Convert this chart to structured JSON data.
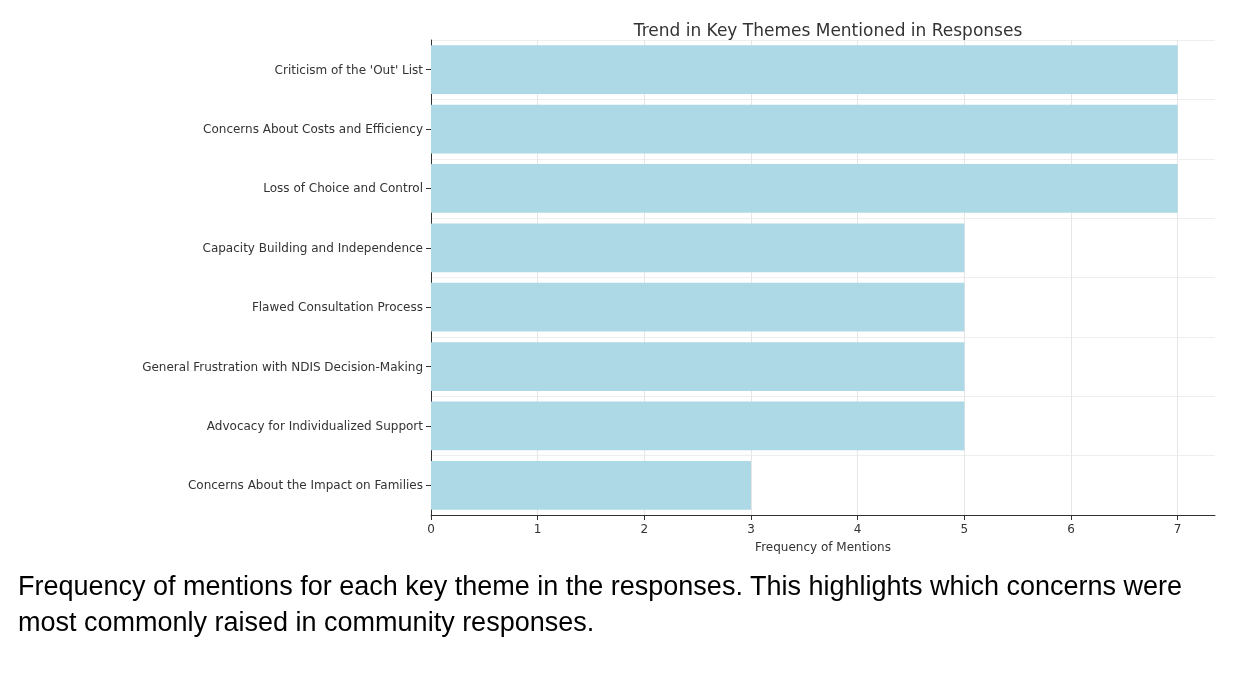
{
  "chart_data": {
    "type": "bar",
    "orientation": "horizontal",
    "title": "Trend in Key Themes Mentioned in Responses",
    "xlabel": "Frequency of Mentions",
    "categories": [
      "Criticism of the 'Out' List",
      "Concerns About Costs and Efficiency",
      "Loss of Choice and Control",
      "Capacity Building and Independence",
      "Flawed Consultation Process",
      "General Frustration with NDIS Decision-Making",
      "Advocacy for Individualized Support",
      "Concerns About the Impact on Families"
    ],
    "values": [
      7,
      7,
      7,
      5,
      5,
      5,
      5,
      3
    ],
    "color": "#add8e6",
    "xlim": [
      0,
      7.35
    ],
    "xticks": [
      0,
      1,
      2,
      3,
      4,
      5,
      6,
      7
    ],
    "grid": true,
    "annotations": [
      "Frequency of mentions for each key theme in the responses. This highlights which concerns were most commonly raised in community responses."
    ]
  }
}
